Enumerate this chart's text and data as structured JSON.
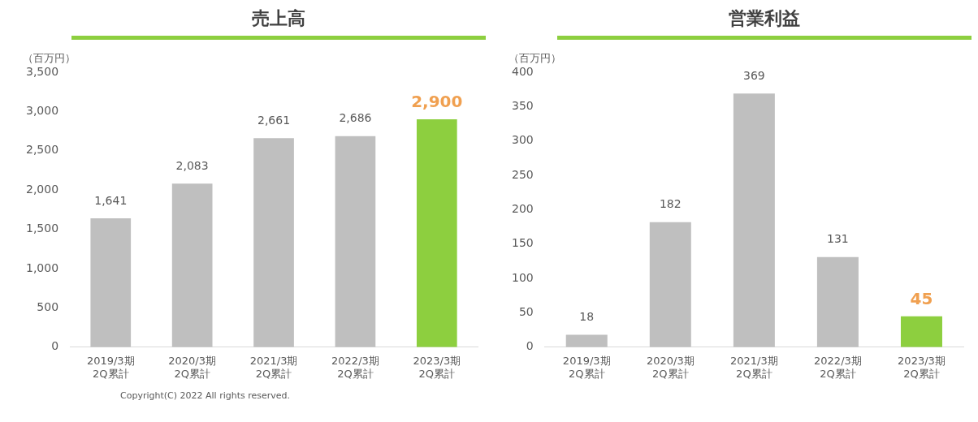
{
  "chart_data": [
    {
      "type": "bar",
      "title": "売上高",
      "ylabel": "（百万円）",
      "categories": [
        "2019/3期\n2Q累計",
        "2020/3期\n2Q累計",
        "2021/3期\n2Q累計",
        "2022/3期\n2Q累計",
        "2023/3期\n2Q累計"
      ],
      "values": [
        1641,
        2083,
        2661,
        2686,
        2900
      ],
      "colors": [
        "#bfbfbf",
        "#bfbfbf",
        "#bfbfbf",
        "#bfbfbf",
        "#8dcf3f"
      ],
      "ylim": [
        0,
        3500
      ],
      "yticks": [
        {
          "value": 0,
          "label": "0"
        },
        {
          "value": 500,
          "label": "500"
        },
        {
          "value": 1000,
          "label": "1,000"
        },
        {
          "value": 1500,
          "label": "1,500"
        },
        {
          "value": 2000,
          "label": "2,000"
        },
        {
          "value": 2500,
          "label": "2,500"
        },
        {
          "value": 3000,
          "label": "3,000"
        },
        {
          "value": 3500,
          "label": "3,500"
        }
      ],
      "value_labels": [
        "1,641",
        "2,083",
        "2,661",
        "2,686",
        "2,900"
      ],
      "grid": false,
      "legend": false,
      "annotations": [
        "Copyright(C) 2022 All rights reserved."
      ]
    },
    {
      "type": "bar",
      "title": "営業利益",
      "ylabel": "（百万円）",
      "categories": [
        "2019/3期\n2Q累計",
        "2020/3期\n2Q累計",
        "2021/3期\n2Q累計",
        "2022/3期\n2Q累計",
        "2023/3期\n2Q累計"
      ],
      "values": [
        18,
        182,
        369,
        131,
        45
      ],
      "colors": [
        "#bfbfbf",
        "#bfbfbf",
        "#bfbfbf",
        "#bfbfbf",
        "#8dcf3f"
      ],
      "ylim": [
        0,
        400
      ],
      "yticks": [
        0,
        50,
        100,
        150,
        200,
        250,
        300,
        350,
        400
      ],
      "data_labels": true,
      "grid": false,
      "legend": false
    }
  ]
}
